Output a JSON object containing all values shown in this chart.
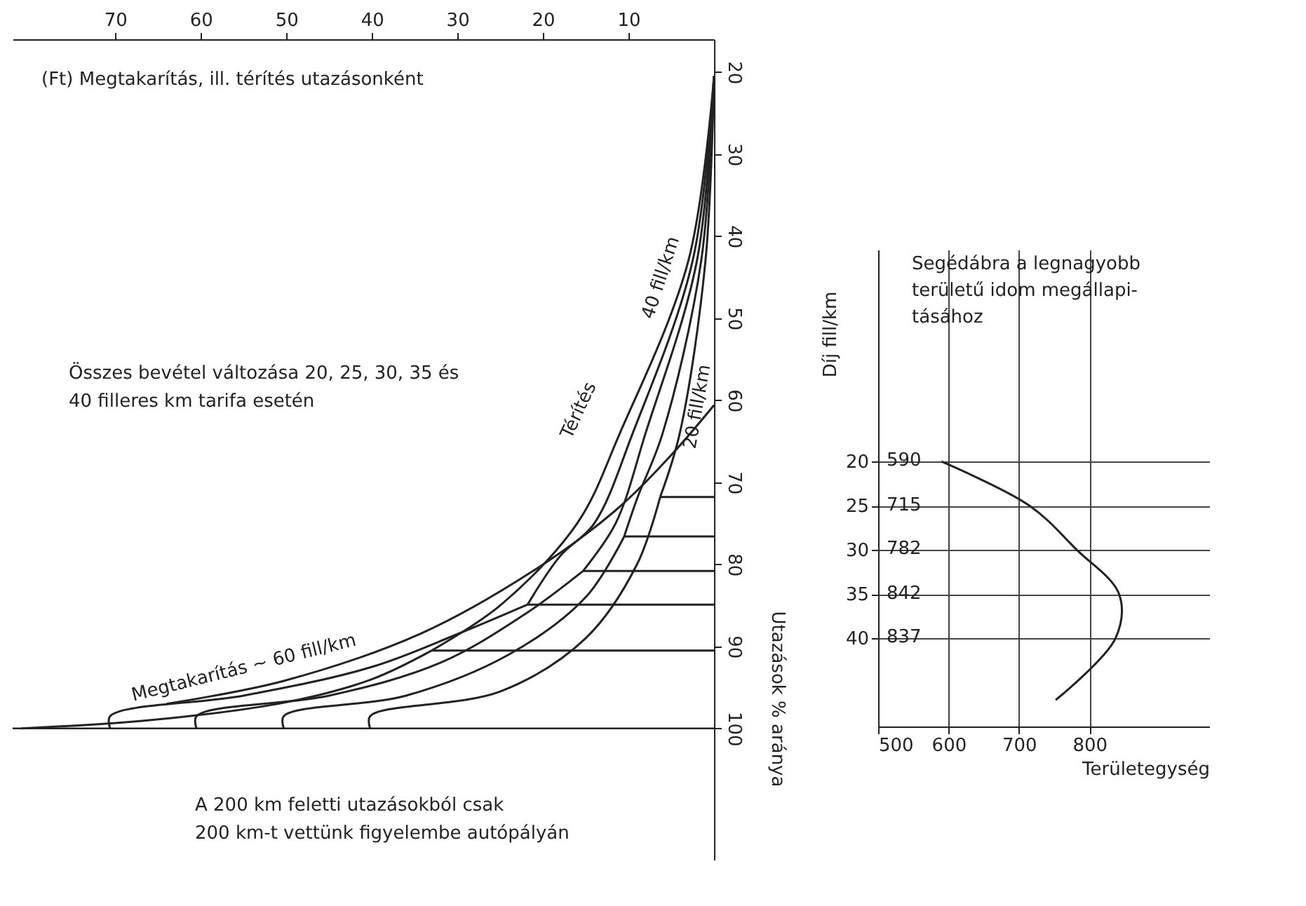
{
  "chart_data": [
    {
      "type": "line",
      "xlabel": "(Ft)  Megtakarítás, ill. térítés utazásonként",
      "ylabel": "Utazások % aránya",
      "xlim": [
        82,
        0
      ],
      "xticks": [
        70,
        60,
        50,
        40,
        30,
        20,
        10
      ],
      "ylim": [
        116,
        16
      ],
      "yticks": [
        20,
        30,
        40,
        50,
        60,
        70,
        80,
        90,
        100
      ],
      "ref_lines": [
        {
          "axis": "y",
          "value": 100
        }
      ],
      "annotations": [
        "Összes bevétel változása 20, 25, 30, 35 és\n40 filleres km tarifa esetén",
        "Térítés",
        "A 200 km feletti utazásokból csak\n200 km-t vettünk figyelembe autópályán"
      ],
      "series": [
        {
          "name": "40 fill/km",
          "color": "#222222",
          "x": [
            0,
            3,
            11,
            16,
            25,
            33
          ],
          "values": [
            20.5,
            43,
            64,
            75,
            85,
            90.5
          ]
        },
        {
          "color": "#222222",
          "x": [
            0,
            2.5,
            9.5,
            14,
            18,
            21.8
          ],
          "values": [
            20.5,
            43,
            64,
            75,
            79,
            84.9
          ]
        },
        {
          "color": "#222222",
          "x": [
            0,
            2,
            8,
            11.5,
            15.3
          ],
          "values": [
            20.5,
            43,
            64,
            75,
            80.8
          ]
        },
        {
          "color": "#222222",
          "x": [
            0,
            1.5,
            6,
            9,
            10.5
          ],
          "values": [
            20.5,
            43,
            64,
            72,
            76.6
          ]
        },
        {
          "name": "20 fill/km",
          "color": "#222222",
          "x": [
            0,
            1,
            4,
            6.3
          ],
          "values": [
            20.5,
            43,
            64,
            71.8
          ]
        },
        {
          "color": "#222222",
          "x": [
            81,
            66,
            50,
            40,
            33
          ],
          "values": [
            100,
            99,
            96.8,
            94,
            90.5
          ]
        },
        {
          "color": "#222222",
          "x": [
            70.6,
            70.6,
            55,
            40,
            30,
            21.8
          ],
          "values": [
            100,
            98.5,
            96,
            92.5,
            88.5,
            84.9
          ]
        },
        {
          "color": "#222222",
          "x": [
            60.5,
            60.5,
            45,
            32,
            22,
            15.3
          ],
          "values": [
            100,
            98.5,
            96,
            92,
            86,
            80.8
          ]
        },
        {
          "color": "#222222",
          "x": [
            50.3,
            50.3,
            36,
            24,
            15,
            10.5
          ],
          "values": [
            100,
            98.5,
            96,
            91,
            84,
            76.6
          ]
        },
        {
          "color": "#222222",
          "x": [
            40.2,
            40.2,
            25,
            15,
            9,
            6.3
          ],
          "values": [
            100,
            98.5,
            95.5,
            89,
            80,
            71.8
          ]
        },
        {
          "name": "Megtakarítás ~ 60 fill/km",
          "color": "#222222",
          "x": [
            64,
            50.3,
            34.2,
            21.3,
            11.6,
            5.2,
            0
          ],
          "values": [
            97,
            94.2,
            88.4,
            80.9,
            73.5,
            66.9,
            60.6
          ]
        },
        {
          "color": "#222222",
          "x": [
            6.3,
            0
          ],
          "values": [
            71.8,
            71.8
          ]
        },
        {
          "color": "#222222",
          "x": [
            10.5,
            0
          ],
          "values": [
            76.6,
            76.6
          ]
        },
        {
          "color": "#222222",
          "x": [
            15.3,
            0
          ],
          "values": [
            80.8,
            80.8
          ]
        },
        {
          "color": "#222222",
          "x": [
            21.8,
            0
          ],
          "values": [
            84.9,
            84.9
          ]
        },
        {
          "color": "#222222",
          "x": [
            33,
            0
          ],
          "values": [
            90.5,
            90.5
          ]
        }
      ]
    },
    {
      "type": "line",
      "title": "Segédábra a legnagyobb\nterületű idom megállapi-\ntásához",
      "xlabel": "Területegység",
      "ylabel": "Díj fill/km",
      "xlim": [
        500,
        970
      ],
      "xticks": [
        500,
        600,
        700,
        800
      ],
      "ylim": [
        50,
        -4
      ],
      "yticks": [
        20,
        25,
        30,
        35,
        40
      ],
      "grid": true,
      "annotations": [
        "590",
        "715",
        "782",
        "842",
        "837"
      ],
      "series": [
        {
          "color": "#222222",
          "x": [
            590,
            715,
            782,
            842,
            837,
            752
          ],
          "values": [
            20,
            25,
            30,
            35,
            40,
            47
          ]
        }
      ]
    }
  ]
}
